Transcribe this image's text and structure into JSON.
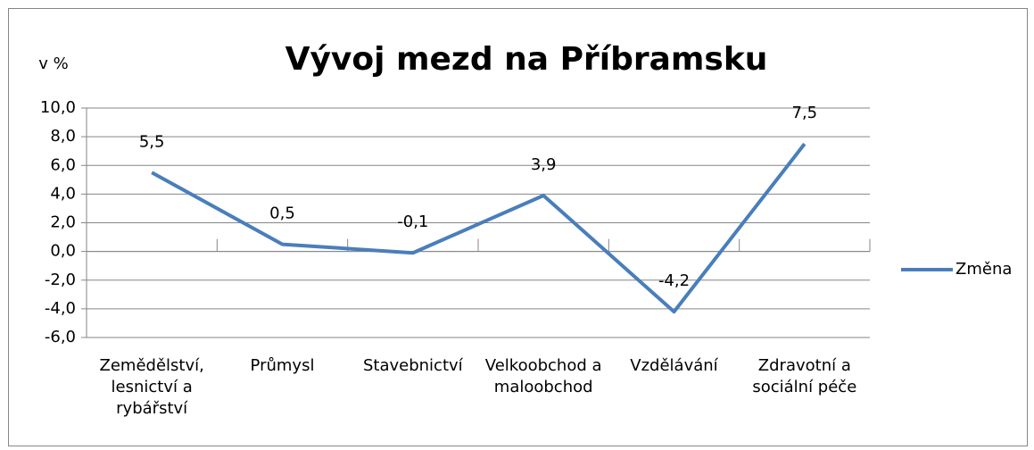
{
  "chart_data": {
    "type": "line",
    "title": "Vývoj mezd na Příbramsku",
    "y_label": "v %",
    "categories": [
      "Zemědělství, lesnictví a rybářství",
      "Průmysl",
      "Stavebnictví",
      "Velkoobchod a maloobchod",
      "Vzdělávání",
      "Zdravotní a sociální péče"
    ],
    "series": [
      {
        "name": "Změna",
        "color": "#4a7ebb",
        "values": [
          5.5,
          0.5,
          -0.1,
          3.9,
          -4.2,
          7.5
        ],
        "value_labels": [
          "5,5",
          "0,5",
          "-0,1",
          "3,9",
          "-4,2",
          "7,5"
        ]
      }
    ],
    "ylim": [
      -6,
      10
    ],
    "yticks": [
      {
        "value": -6,
        "label": "-6,0"
      },
      {
        "value": -4,
        "label": "-4,0"
      },
      {
        "value": -2,
        "label": "-2,0"
      },
      {
        "value": 0,
        "label": "0,0"
      },
      {
        "value": 2,
        "label": "2,0"
      },
      {
        "value": 4,
        "label": "4,0"
      },
      {
        "value": 6,
        "label": "6,0"
      },
      {
        "value": 8,
        "label": "8,0"
      },
      {
        "value": 10,
        "label": "10,0"
      }
    ],
    "grid": true,
    "legend": "right"
  }
}
